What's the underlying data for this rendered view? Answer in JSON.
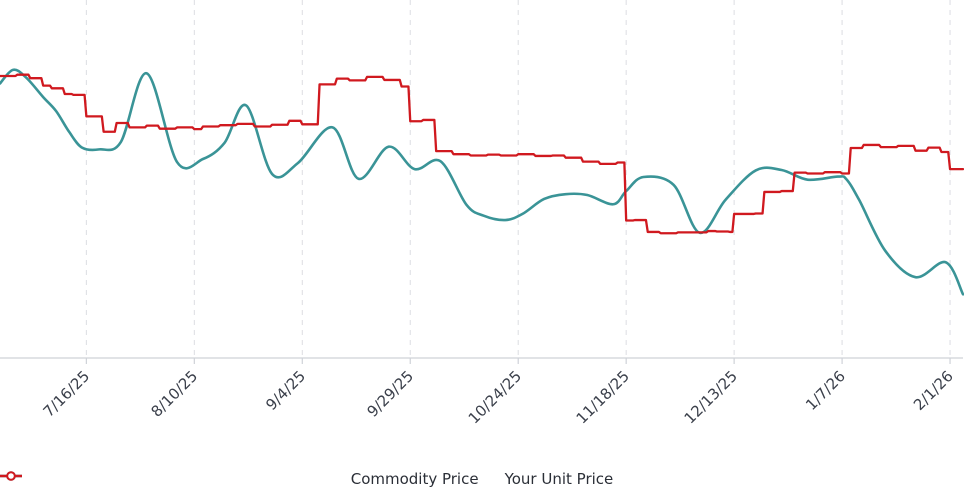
{
  "chart_data": {
    "type": "line",
    "title": "",
    "xlabel": "",
    "ylabel": "",
    "grid": "vertical",
    "legend_position": "bottom",
    "x_ticks": [
      "7/16/25",
      "8/10/25",
      "9/4/25",
      "9/29/25",
      "10/24/25",
      "11/18/25",
      "12/13/25",
      "1/7/26",
      "2/1/26"
    ],
    "x_range": [
      "6/26/25",
      "2/4/26"
    ],
    "series": [
      {
        "name": "Commodity Price",
        "color": "#3a9497",
        "shape": "smooth",
        "points": [
          [
            "6/26/25",
            62.5
          ],
          [
            "6/29/25",
            65.6
          ],
          [
            "7/2/25",
            63.9
          ],
          [
            "7/6/25",
            59.4
          ],
          [
            "7/9/25",
            56.2
          ],
          [
            "7/12/25",
            51.5
          ],
          [
            "7/15/25",
            47.9
          ],
          [
            "7/19/25",
            47.5
          ],
          [
            "7/24/25",
            49.2
          ],
          [
            "7/30/25",
            64.8
          ],
          [
            "8/6/25",
            44.6
          ],
          [
            "8/12/25",
            45.3
          ],
          [
            "8/17/25",
            49.0
          ],
          [
            "8/22/25",
            57.5
          ],
          [
            "8/28/25",
            41.9
          ],
          [
            "9/3/25",
            44.4
          ],
          [
            "9/11/25",
            52.5
          ],
          [
            "9/17/25",
            40.8
          ],
          [
            "9/24/25",
            48.1
          ],
          [
            "9/30/25",
            43.0
          ],
          [
            "10/6/25",
            44.8
          ],
          [
            "10/12/25",
            34.9
          ],
          [
            "10/16/25",
            32.4
          ],
          [
            "10/21/25",
            31.4
          ],
          [
            "10/25/25",
            32.8
          ],
          [
            "10/30/25",
            36.2
          ],
          [
            "11/4/25",
            37.3
          ],
          [
            "11/9/25",
            37.1
          ],
          [
            "11/15/25",
            35.0
          ],
          [
            "11/18/25",
            38.0
          ],
          [
            "11/22/25",
            41.2
          ],
          [
            "11/29/25",
            39.4
          ],
          [
            "12/5/25",
            28.5
          ],
          [
            "12/11/25",
            36.0
          ],
          [
            "12/18/25",
            42.7
          ],
          [
            "12/24/25",
            42.8
          ],
          [
            "12/30/25",
            40.6
          ],
          [
            "1/6/26",
            41.3
          ],
          [
            "1/8/26",
            40.7
          ],
          [
            "1/11/26",
            35.9
          ],
          [
            "1/17/26",
            24.4
          ],
          [
            "1/24/26",
            18.4
          ],
          [
            "1/31/26",
            21.8
          ],
          [
            "2/4/26",
            14.5
          ]
        ]
      },
      {
        "name": "Your Unit Price",
        "color": "#d0191f",
        "shape": "step",
        "points": [
          [
            "6/26/25",
            64.2
          ],
          [
            "6/30/25",
            64.5
          ],
          [
            "7/3/25",
            63.7
          ],
          [
            "7/6/25",
            62.0
          ],
          [
            "7/8/25",
            61.4
          ],
          [
            "7/11/25",
            60.1
          ],
          [
            "7/13/25",
            59.9
          ],
          [
            "7/16/25",
            55.0
          ],
          [
            "7/20/25",
            51.5
          ],
          [
            "7/23/25",
            53.5
          ],
          [
            "7/26/25",
            52.5
          ],
          [
            "7/30/25",
            52.9
          ],
          [
            "8/2/25",
            52.2
          ],
          [
            "8/6/25",
            52.5
          ],
          [
            "8/10/25",
            52.1
          ],
          [
            "8/12/25",
            52.7
          ],
          [
            "8/16/25",
            53.0
          ],
          [
            "8/20/25",
            53.3
          ],
          [
            "8/24/25",
            52.7
          ],
          [
            "8/28/25",
            53.1
          ],
          [
            "9/1/25",
            54.0
          ],
          [
            "9/4/25",
            53.2
          ],
          [
            "9/8/25",
            62.3
          ],
          [
            "9/12/25",
            63.6
          ],
          [
            "9/15/25",
            63.2
          ],
          [
            "9/19/25",
            64.0
          ],
          [
            "9/23/25",
            63.3
          ],
          [
            "9/27/25",
            61.8
          ],
          [
            "9/29/25",
            53.9
          ],
          [
            "10/2/25",
            54.2
          ],
          [
            "10/5/25",
            47.1
          ],
          [
            "10/9/25",
            46.4
          ],
          [
            "10/13/25",
            46.1
          ],
          [
            "10/17/25",
            46.3
          ],
          [
            "10/20/25",
            46.1
          ],
          [
            "10/24/25",
            46.4
          ],
          [
            "10/28/25",
            46.0
          ],
          [
            "11/1/25",
            46.1
          ],
          [
            "11/4/25",
            45.6
          ],
          [
            "11/8/25",
            44.7
          ],
          [
            "11/12/25",
            44.2
          ],
          [
            "11/16/25",
            44.5
          ],
          [
            "11/18/25",
            31.3
          ],
          [
            "11/20/25",
            31.4
          ],
          [
            "11/23/25",
            28.7
          ],
          [
            "11/26/25",
            28.4
          ],
          [
            "11/30/25",
            28.6
          ],
          [
            "12/3/25",
            28.6
          ],
          [
            "12/7/25",
            28.9
          ],
          [
            "12/9/25",
            28.8
          ],
          [
            "12/12/25",
            28.7
          ],
          [
            "12/13/25",
            32.8
          ],
          [
            "12/18/25",
            32.9
          ],
          [
            "12/20/25",
            37.8
          ],
          [
            "12/24/25",
            38.0
          ],
          [
            "12/27/25",
            42.2
          ],
          [
            "12/30/25",
            42.0
          ],
          [
            "1/3/26",
            42.3
          ],
          [
            "1/7/26",
            42.0
          ],
          [
            "1/9/26",
            47.8
          ],
          [
            "1/12/26",
            48.5
          ],
          [
            "1/16/26",
            48.0
          ],
          [
            "1/20/26",
            48.3
          ],
          [
            "1/24/26",
            47.2
          ],
          [
            "1/27/26",
            47.9
          ],
          [
            "1/30/26",
            46.9
          ],
          [
            "2/1/26",
            43.0
          ],
          [
            "2/4/26",
            43.0
          ]
        ]
      }
    ]
  }
}
